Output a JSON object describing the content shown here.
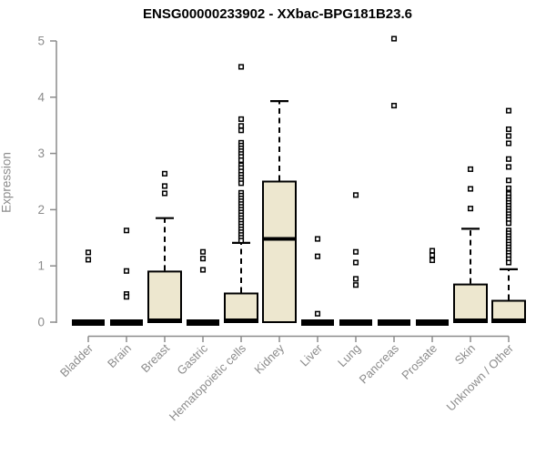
{
  "chart_data": {
    "type": "box",
    "title": "ENSG00000233902 - XXbac-BPG181B23.6",
    "ylabel": "Expression",
    "ylim": [
      0,
      5.1
    ],
    "yticks": [
      0,
      1,
      2,
      3,
      4,
      5
    ],
    "grid": false,
    "legend": null,
    "categories": [
      "Bladder",
      "Brain",
      "Breast",
      "Gastric",
      "Hematopoietic cells",
      "Kidney",
      "Liver",
      "Lung",
      "Pancreas",
      "Prostate",
      "Skin",
      "Unknown / Other"
    ],
    "boxes": [
      {
        "label": "Bladder",
        "q1": 0,
        "median": 0,
        "q3": 0,
        "whisker_low": 0,
        "whisker_high": 0,
        "outliers": [
          1.24,
          1.11
        ]
      },
      {
        "label": "Brain",
        "q1": 0,
        "median": 0,
        "q3": 0,
        "whisker_low": 0,
        "whisker_high": 0,
        "outliers": [
          1.63,
          0.91,
          0.5,
          0.45
        ]
      },
      {
        "label": "Breast",
        "q1": 0,
        "median": 0,
        "q3": 0.9,
        "whisker_low": 0,
        "whisker_high": 1.85,
        "outliers": [
          2.64,
          2.42,
          2.29
        ]
      },
      {
        "label": "Gastric",
        "q1": 0,
        "median": 0,
        "q3": 0,
        "whisker_low": 0,
        "whisker_high": 0,
        "outliers": [
          1.25,
          1.13,
          0.93
        ]
      },
      {
        "label": "Hematopoietic cells",
        "q1": 0,
        "median": 0,
        "q3": 0.51,
        "whisker_low": 0,
        "whisker_high": 1.41,
        "outliers": [
          4.54,
          3.61,
          3.49,
          3.41,
          3.19,
          3.14,
          3.09,
          3.04,
          2.99,
          2.94,
          2.88,
          2.79,
          2.74,
          2.68,
          2.62,
          2.57,
          2.52,
          2.47,
          2.3,
          2.25,
          2.2,
          2.15,
          2.1,
          2.05,
          2.0,
          1.95,
          1.9,
          1.85,
          1.8,
          1.75,
          1.7,
          1.65,
          1.6,
          1.55,
          1.5,
          1.45
        ]
      },
      {
        "label": "Kidney",
        "q1": 0,
        "median": 1.48,
        "q3": 2.5,
        "whisker_low": 0,
        "whisker_high": 3.93,
        "outliers": []
      },
      {
        "label": "Liver",
        "q1": 0,
        "median": 0,
        "q3": 0,
        "whisker_low": 0,
        "whisker_high": 0,
        "outliers": [
          1.48,
          1.17,
          0.15
        ]
      },
      {
        "label": "Lung",
        "q1": 0,
        "median": 0,
        "q3": 0,
        "whisker_low": 0,
        "whisker_high": 0,
        "outliers": [
          2.26,
          1.25,
          1.06,
          0.77,
          0.66
        ]
      },
      {
        "label": "Pancreas",
        "q1": 0,
        "median": 0,
        "q3": 0,
        "whisker_low": 0,
        "whisker_high": 0,
        "outliers": [
          5.04,
          3.85
        ]
      },
      {
        "label": "Prostate",
        "q1": 0,
        "median": 0,
        "q3": 0,
        "whisker_low": 0,
        "whisker_high": 0,
        "outliers": [
          1.27,
          1.19,
          1.1
        ]
      },
      {
        "label": "Skin",
        "q1": 0,
        "median": 0,
        "q3": 0.67,
        "whisker_low": 0,
        "whisker_high": 1.66,
        "outliers": [
          2.72,
          2.37,
          2.02
        ]
      },
      {
        "label": "Unknown / Other",
        "q1": 0,
        "median": 0,
        "q3": 0.38,
        "whisker_low": 0,
        "whisker_high": 0.94,
        "outliers": [
          3.76,
          3.43,
          3.31,
          3.18,
          2.9,
          2.76,
          2.52,
          2.38,
          2.28,
          2.22,
          2.17,
          2.12,
          2.07,
          2.02,
          1.97,
          1.92,
          1.87,
          1.82,
          1.76,
          1.63,
          1.58,
          1.53,
          1.48,
          1.43,
          1.38,
          1.33,
          1.28,
          1.23,
          1.18,
          1.12,
          1.06
        ]
      }
    ],
    "colors": {
      "box_fill": "#EDE7CF",
      "box_stroke": "#000000",
      "median": "#000000",
      "outlier_stroke": "#000000",
      "axis": "#8C8C8C",
      "title": "#000000",
      "background": "#FFFFFF"
    }
  }
}
